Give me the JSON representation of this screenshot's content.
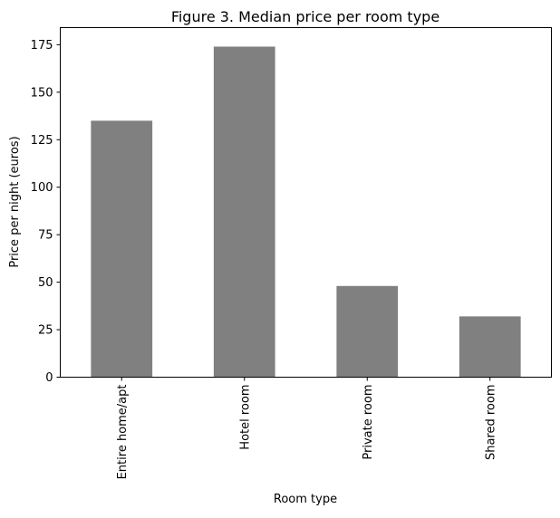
{
  "chart_data": {
    "type": "bar",
    "title": "Figure 3. Median price per room type",
    "xlabel": "Room type",
    "ylabel": "Price per night (euros)",
    "categories": [
      "Entire home/apt",
      "Hotel room",
      "Private room",
      "Shared room"
    ],
    "values": [
      135,
      174,
      48,
      32
    ],
    "ylim": [
      0,
      184
    ],
    "yticks": [
      0,
      25,
      50,
      75,
      100,
      125,
      150,
      175
    ],
    "bar_color": "#808080",
    "grid": false,
    "legend": "none"
  }
}
